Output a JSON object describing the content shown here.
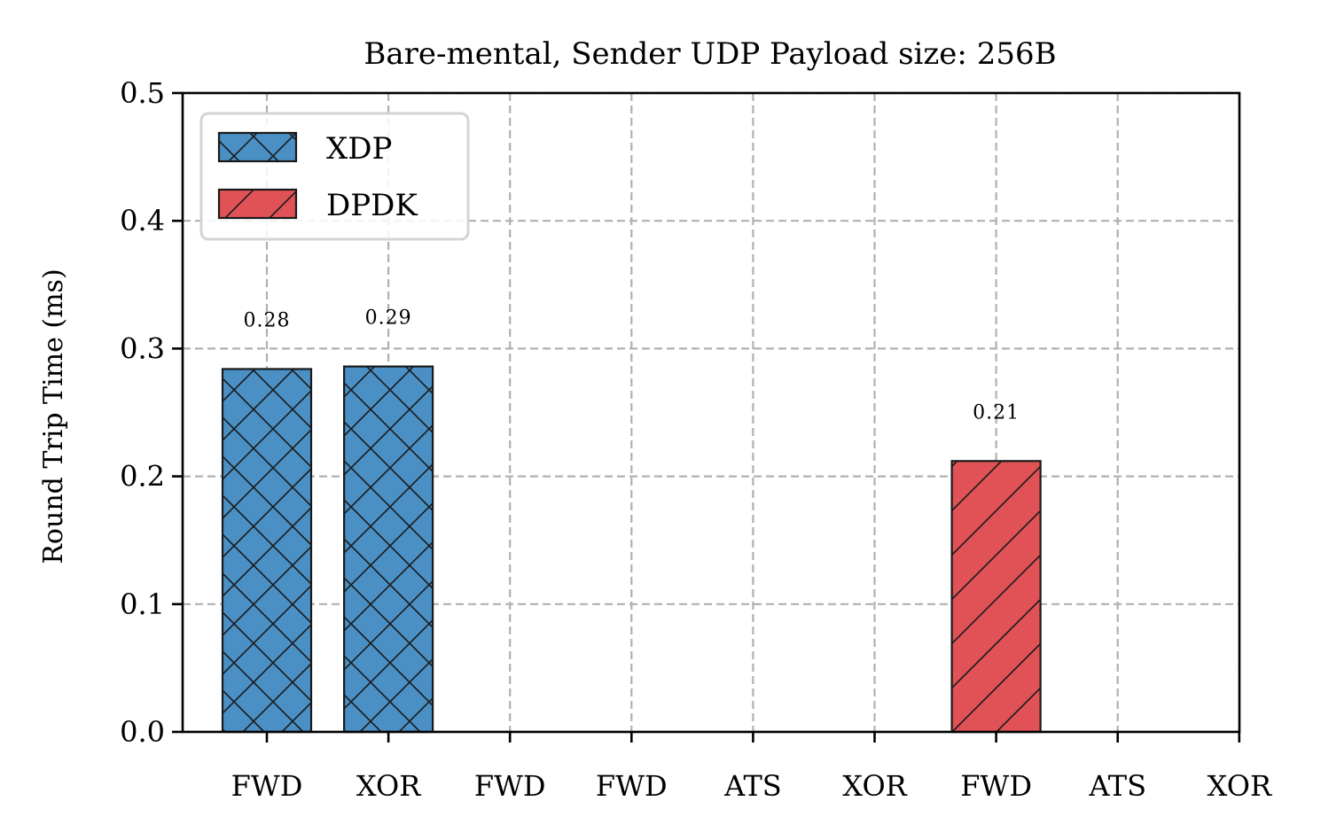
{
  "chart_data": {
    "type": "bar",
    "title": "Bare-mental, Sender UDP Payload size: 256B",
    "xlabel": "",
    "ylabel": "Round Trip Time (ms)",
    "ylim": [
      0,
      0.5
    ],
    "yticks": [
      0.0,
      0.1,
      0.2,
      0.3,
      0.4,
      0.5
    ],
    "ytick_labels": [
      "0.0",
      "0.1",
      "0.2",
      "0.3",
      "0.4",
      "0.5"
    ],
    "categories": [
      "FWD",
      "XOR",
      "FWD",
      "FWD",
      "ATS",
      "XOR",
      "FWD",
      "ATS",
      "XOR"
    ],
    "grid": true,
    "legend_position": "top-left",
    "series": [
      {
        "name": "XDP",
        "color": "#4a90c4",
        "hatch": "cross-diagonal",
        "values": [
          0.284,
          0.286,
          null,
          null,
          null,
          null,
          null,
          null,
          null
        ],
        "labels": [
          "0.28",
          "0.29",
          null,
          null,
          null,
          null,
          null,
          null,
          null
        ]
      },
      {
        "name": "DPDK",
        "color": "#e05255",
        "hatch": "diagonal",
        "values": [
          null,
          null,
          null,
          null,
          null,
          null,
          0.212,
          null,
          null
        ],
        "labels": [
          null,
          null,
          null,
          null,
          null,
          null,
          "0.21",
          null,
          null
        ]
      }
    ]
  }
}
